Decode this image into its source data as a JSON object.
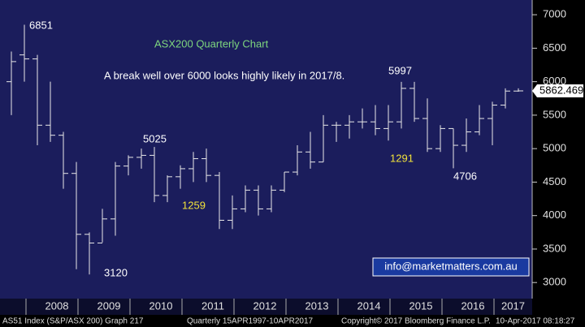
{
  "chart_data": {
    "type": "ohlc",
    "annotations": [
      {
        "text": "6851",
        "color": "#ffffff"
      },
      {
        "text": "ASX200 Quarterly Chart",
        "color": "#7ed67e"
      },
      {
        "text": "A break well over 6000 looks highly likely in 2017/8.",
        "color": "#ffffff"
      },
      {
        "text": "5997",
        "color": "#ffffff"
      },
      {
        "text": "5025",
        "color": "#ffffff"
      },
      {
        "text": "1259",
        "color": "#f2e23a"
      },
      {
        "text": "1291",
        "color": "#f2e23a"
      },
      {
        "text": "4706",
        "color": "#ffffff"
      },
      {
        "text": "3120",
        "color": "#ffffff"
      }
    ],
    "contact": "info@marketmatters.com.au",
    "footer": [
      "AS51 Index (S&P/ASX 200) Graph 217",
      "Quarterly 15APR1997-10APR2017",
      "Copyright© 2017 Bloomberg Finance L.P.",
      "10-Apr-2017 08:18:27"
    ],
    "year_labels": [
      "2008",
      "2009",
      "2010",
      "2011",
      "2012",
      "2013",
      "2014",
      "2015",
      "2016",
      "2017"
    ],
    "categories": [
      null,
      null,
      null,
      null,
      null,
      null,
      null,
      null,
      null,
      null,
      null,
      null,
      null,
      null,
      null,
      null,
      null,
      null,
      null,
      null,
      null,
      null,
      null,
      null,
      null,
      null,
      null,
      null,
      null,
      null,
      null,
      null,
      null,
      null,
      null,
      null,
      null,
      null,
      null,
      null
    ],
    "open": [
      6000,
      6400,
      6340,
      5350,
      5200,
      4630,
      3720,
      3590,
      3950,
      4740,
      4870,
      4900,
      4300,
      4580,
      4700,
      4850,
      4600,
      3930,
      4100,
      4380,
      4100,
      4380,
      4650,
      4950,
      4800,
      5350,
      5350,
      5400,
      5400,
      5300,
      5400,
      5900,
      5450,
      5000,
      5300,
      5050,
      5250,
      5450,
      5650,
      5860
    ],
    "high": [
      6450,
      6851,
      6400,
      6000,
      5250,
      4800,
      3750,
      4100,
      4800,
      4900,
      5000,
      5025,
      4600,
      4750,
      4950,
      5000,
      4650,
      4300,
      4450,
      4450,
      4450,
      4650,
      5050,
      5250,
      5500,
      5400,
      5500,
      5600,
      5650,
      5650,
      5997,
      5997,
      5750,
      5350,
      5300,
      5450,
      5650,
      5700,
      5900,
      5900
    ],
    "low": [
      5500,
      6000,
      5050,
      5100,
      4400,
      3200,
      3120,
      3600,
      3700,
      4600,
      4700,
      4200,
      4200,
      4400,
      4500,
      4500,
      3800,
      3800,
      4050,
      4000,
      4050,
      4350,
      4600,
      4700,
      4800,
      5100,
      5150,
      5300,
      5200,
      5120,
      5300,
      5400,
      4950,
      4950,
      4706,
      4950,
      5200,
      5050,
      5600,
      5850
    ],
    "close": [
      6300,
      6340,
      5350,
      5200,
      4630,
      3720,
      3590,
      3950,
      4740,
      4870,
      4900,
      4300,
      4580,
      4700,
      4850,
      4600,
      3930,
      4100,
      4380,
      4100,
      4380,
      4650,
      4950,
      4800,
      5350,
      5350,
      5400,
      5400,
      5300,
      5400,
      5900,
      5450,
      5000,
      5300,
      5050,
      5250,
      5450,
      5650,
      5860,
      5862.469
    ],
    "color": "#e8e8e8",
    "ylim": [
      2760,
      7220
    ],
    "yticks": [
      3000,
      3500,
      4000,
      4500,
      5000,
      5500,
      6000,
      6500,
      7000
    ],
    "grid": false
  }
}
